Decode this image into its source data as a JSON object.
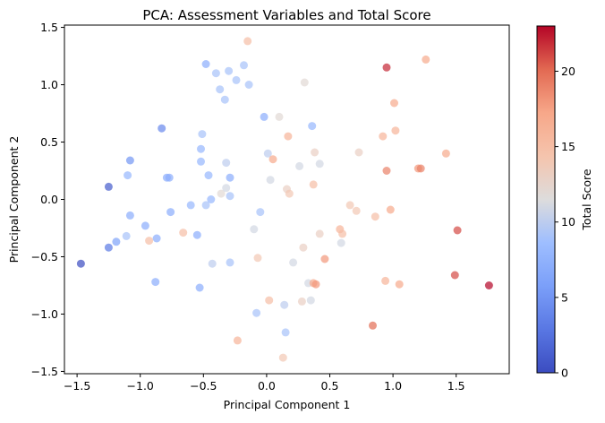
{
  "chart_data": {
    "type": "scatter",
    "title": "PCA: Assessment Variables and Total Score",
    "xlabel": "Principal Component 1",
    "ylabel": "Principal Component 2",
    "xlim": [
      -1.6,
      1.92
    ],
    "ylim": [
      -1.52,
      1.52
    ],
    "xticks": [
      -1.5,
      -1.0,
      -0.5,
      0.0,
      0.5,
      1.0,
      1.5
    ],
    "xtick_labels": [
      "−1.5",
      "−1.0",
      "−0.5",
      "0.0",
      "0.5",
      "1.0",
      "1.5"
    ],
    "yticks": [
      -1.5,
      -1.0,
      -0.5,
      0.0,
      0.5,
      1.0,
      1.5
    ],
    "ytick_labels": [
      "−1.5",
      "−1.0",
      "−0.5",
      "0.0",
      "0.5",
      "1.0",
      "1.5"
    ],
    "colorbar": {
      "label": "Total Score",
      "min": 0,
      "max": 23,
      "ticks": [
        0,
        5,
        10,
        15,
        20
      ],
      "tick_labels": [
        "0",
        "5",
        "10",
        "15",
        "20"
      ],
      "colormap": "coolwarm"
    },
    "grid": false,
    "legend": "none",
    "marker_alpha": 0.7,
    "points": [
      {
        "x": -1.47,
        "y": -0.56,
        "score": 0
      },
      {
        "x": -1.25,
        "y": 0.11,
        "score": 1
      },
      {
        "x": -1.25,
        "y": -0.42,
        "score": 3
      },
      {
        "x": -1.19,
        "y": -0.37,
        "score": 6
      },
      {
        "x": -1.11,
        "y": -0.32,
        "score": 9
      },
      {
        "x": -1.1,
        "y": 0.21,
        "score": 8
      },
      {
        "x": -1.08,
        "y": 0.34,
        "score": 5
      },
      {
        "x": -1.08,
        "y": -0.14,
        "score": 7
      },
      {
        "x": -0.96,
        "y": -0.23,
        "score": 7
      },
      {
        "x": -0.93,
        "y": -0.36,
        "score": 15
      },
      {
        "x": -0.88,
        "y": -0.72,
        "score": 7
      },
      {
        "x": -0.87,
        "y": -0.34,
        "score": 7
      },
      {
        "x": -0.83,
        "y": 0.62,
        "score": 4
      },
      {
        "x": -0.79,
        "y": 0.19,
        "score": 7
      },
      {
        "x": -0.77,
        "y": 0.19,
        "score": 7
      },
      {
        "x": -0.76,
        "y": -0.11,
        "score": 7
      },
      {
        "x": -0.66,
        "y": -0.29,
        "score": 15
      },
      {
        "x": -0.6,
        "y": -0.05,
        "score": 8
      },
      {
        "x": -0.55,
        "y": -0.31,
        "score": 7
      },
      {
        "x": -0.53,
        "y": -0.77,
        "score": 7
      },
      {
        "x": -0.52,
        "y": 0.44,
        "score": 8
      },
      {
        "x": -0.52,
        "y": 0.33,
        "score": 8
      },
      {
        "x": -0.51,
        "y": 0.57,
        "score": 9
      },
      {
        "x": -0.48,
        "y": 1.18,
        "score": 7
      },
      {
        "x": -0.48,
        "y": -0.05,
        "score": 9
      },
      {
        "x": -0.46,
        "y": 0.21,
        "score": 8
      },
      {
        "x": -0.44,
        "y": 0.0,
        "score": 8
      },
      {
        "x": -0.43,
        "y": -0.56,
        "score": 10
      },
      {
        "x": -0.4,
        "y": 1.1,
        "score": 9
      },
      {
        "x": -0.37,
        "y": 0.96,
        "score": 9
      },
      {
        "x": -0.36,
        "y": 0.05,
        "score": 12
      },
      {
        "x": -0.33,
        "y": 0.87,
        "score": 9
      },
      {
        "x": -0.32,
        "y": 0.1,
        "score": 11
      },
      {
        "x": -0.32,
        "y": 0.32,
        "score": 10
      },
      {
        "x": -0.3,
        "y": 1.12,
        "score": 9
      },
      {
        "x": -0.29,
        "y": 0.03,
        "score": 9
      },
      {
        "x": -0.29,
        "y": -0.55,
        "score": 9
      },
      {
        "x": -0.29,
        "y": 0.19,
        "score": 7
      },
      {
        "x": -0.24,
        "y": 1.04,
        "score": 9
      },
      {
        "x": -0.23,
        "y": -1.23,
        "score": 16
      },
      {
        "x": -0.18,
        "y": 1.17,
        "score": 9
      },
      {
        "x": -0.15,
        "y": 1.38,
        "score": 15
      },
      {
        "x": -0.14,
        "y": 1.0,
        "score": 9
      },
      {
        "x": -0.1,
        "y": -0.26,
        "score": 11
      },
      {
        "x": -0.08,
        "y": -0.99,
        "score": 9
      },
      {
        "x": -0.07,
        "y": -0.51,
        "score": 14
      },
      {
        "x": -0.05,
        "y": -0.11,
        "score": 9
      },
      {
        "x": -0.02,
        "y": 0.72,
        "score": 7
      },
      {
        "x": 0.01,
        "y": 0.4,
        "score": 10
      },
      {
        "x": 0.02,
        "y": -0.88,
        "score": 15
      },
      {
        "x": 0.03,
        "y": 0.17,
        "score": 11
      },
      {
        "x": 0.05,
        "y": 0.35,
        "score": 17
      },
      {
        "x": 0.1,
        "y": 0.72,
        "score": 12
      },
      {
        "x": 0.13,
        "y": -1.38,
        "score": 14
      },
      {
        "x": 0.14,
        "y": -0.92,
        "score": 10
      },
      {
        "x": 0.15,
        "y": -1.16,
        "score": 9
      },
      {
        "x": 0.16,
        "y": 0.09,
        "score": 13
      },
      {
        "x": 0.17,
        "y": 0.55,
        "score": 16
      },
      {
        "x": 0.18,
        "y": 0.05,
        "score": 14
      },
      {
        "x": 0.21,
        "y": -0.55,
        "score": 11
      },
      {
        "x": 0.26,
        "y": 0.29,
        "score": 11
      },
      {
        "x": 0.28,
        "y": -0.89,
        "score": 13
      },
      {
        "x": 0.29,
        "y": -0.42,
        "score": 13
      },
      {
        "x": 0.3,
        "y": 1.02,
        "score": 12
      },
      {
        "x": 0.33,
        "y": -0.73,
        "score": 11
      },
      {
        "x": 0.35,
        "y": -0.88,
        "score": 11
      },
      {
        "x": 0.36,
        "y": 0.64,
        "score": 8
      },
      {
        "x": 0.37,
        "y": 0.13,
        "score": 15
      },
      {
        "x": 0.37,
        "y": -0.73,
        "score": 17
      },
      {
        "x": 0.38,
        "y": 0.41,
        "score": 13
      },
      {
        "x": 0.39,
        "y": -0.74,
        "score": 18
      },
      {
        "x": 0.42,
        "y": -0.3,
        "score": 13
      },
      {
        "x": 0.42,
        "y": 0.31,
        "score": 11
      },
      {
        "x": 0.46,
        "y": -0.52,
        "score": 18
      },
      {
        "x": 0.58,
        "y": -0.26,
        "score": 16
      },
      {
        "x": 0.59,
        "y": -0.38,
        "score": 11
      },
      {
        "x": 0.6,
        "y": -0.3,
        "score": 15
      },
      {
        "x": 0.66,
        "y": -0.05,
        "score": 14
      },
      {
        "x": 0.71,
        "y": -0.1,
        "score": 14
      },
      {
        "x": 0.73,
        "y": 0.41,
        "score": 13
      },
      {
        "x": 0.84,
        "y": -1.1,
        "score": 20
      },
      {
        "x": 0.86,
        "y": -0.15,
        "score": 15
      },
      {
        "x": 0.92,
        "y": 0.55,
        "score": 16
      },
      {
        "x": 0.94,
        "y": -0.71,
        "score": 16
      },
      {
        "x": 0.95,
        "y": 1.15,
        "score": 22
      },
      {
        "x": 0.95,
        "y": 0.25,
        "score": 19
      },
      {
        "x": 0.98,
        "y": -0.09,
        "score": 17
      },
      {
        "x": 1.01,
        "y": 0.84,
        "score": 17
      },
      {
        "x": 1.02,
        "y": 0.6,
        "score": 16
      },
      {
        "x": 1.05,
        "y": -0.74,
        "score": 17
      },
      {
        "x": 1.2,
        "y": 0.27,
        "score": 18
      },
      {
        "x": 1.22,
        "y": 0.27,
        "score": 19
      },
      {
        "x": 1.26,
        "y": 1.22,
        "score": 17
      },
      {
        "x": 1.42,
        "y": 0.4,
        "score": 17
      },
      {
        "x": 1.49,
        "y": -0.66,
        "score": 21
      },
      {
        "x": 1.51,
        "y": -0.27,
        "score": 21
      },
      {
        "x": 1.76,
        "y": -0.75,
        "score": 23
      }
    ]
  }
}
